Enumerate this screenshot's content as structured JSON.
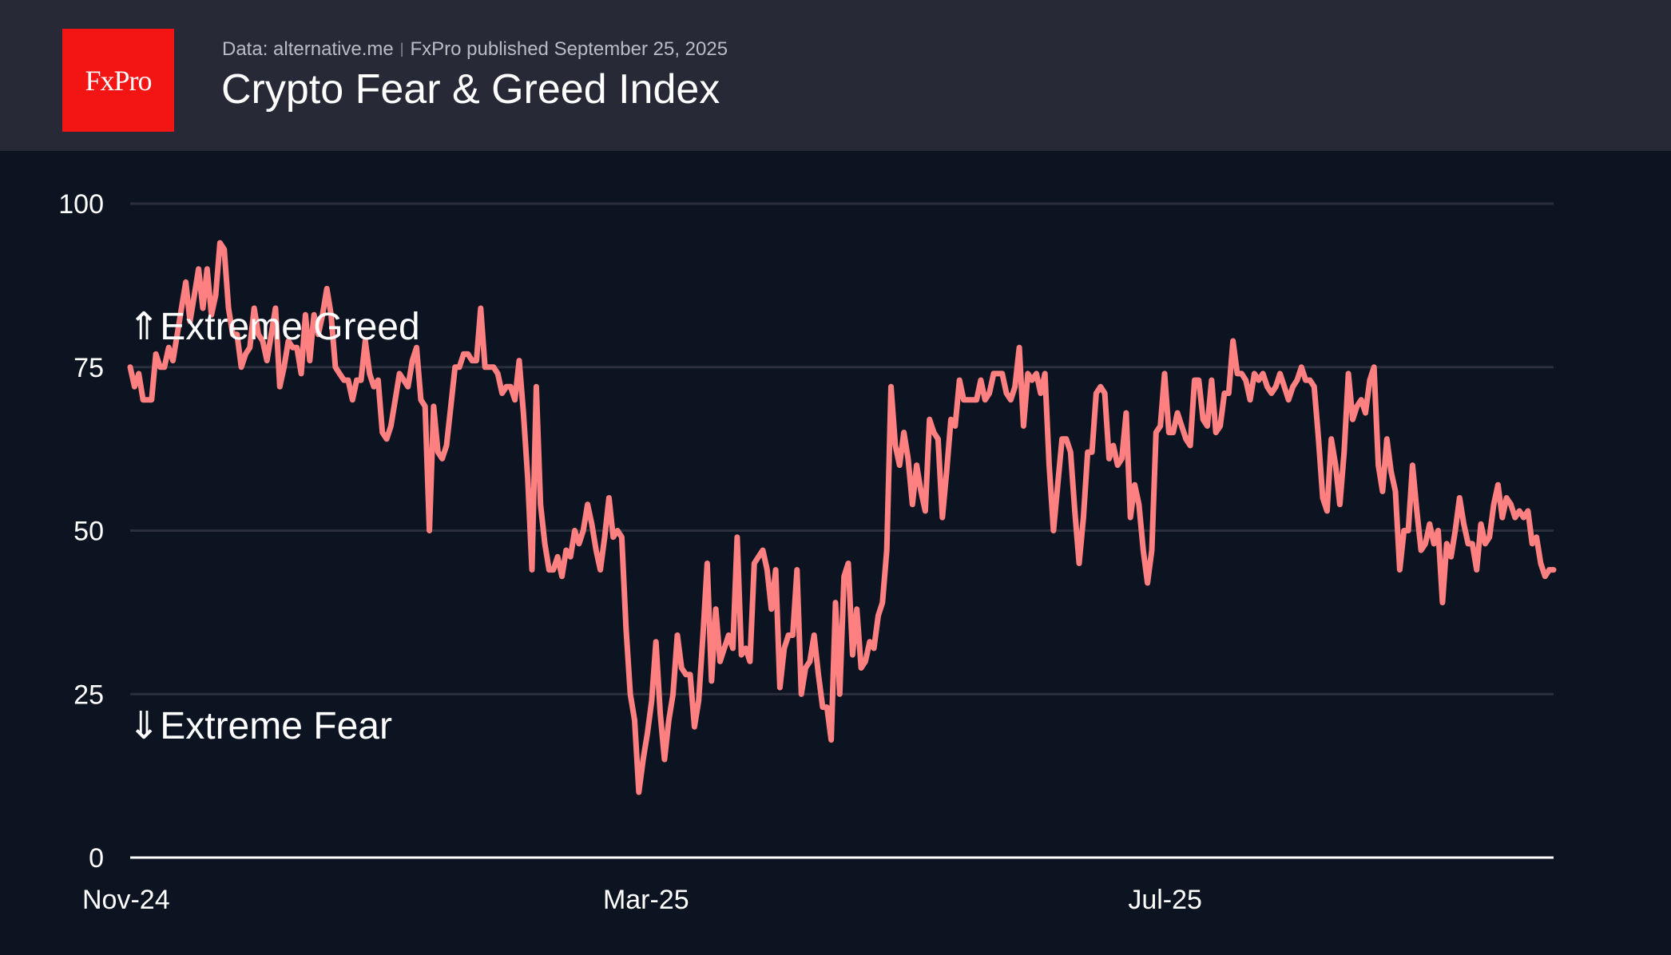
{
  "header": {
    "logo_text": "FxPro",
    "source": "Data: alternative.me",
    "separator": "|",
    "published": "FxPro published September 25, 2025",
    "title": "Crypto Fear & Greed Index"
  },
  "colors": {
    "header_bg": "#272a36",
    "chart_bg": "#0d1421",
    "logo_bg": "#f31414",
    "line": "#ff8080",
    "grid": "#2a2f3b",
    "axis": "#ffffff"
  },
  "chart_data": {
    "type": "line",
    "title": "Crypto Fear & Greed Index",
    "xlabel": "",
    "ylabel": "",
    "ylim": [
      0,
      100
    ],
    "yticks": [
      0,
      25,
      50,
      75,
      100
    ],
    "grid": true,
    "x_start": "2024-11-01",
    "x_end": "2025-09-25",
    "xticks": [
      {
        "label": "Nov-24",
        "day": 0
      },
      {
        "label": "Mar-25",
        "day": 120
      },
      {
        "label": "Jul-25",
        "day": 241
      }
    ],
    "annotations": [
      {
        "text": "⇑Extreme Greed",
        "value": 80
      },
      {
        "text": "⇓Extreme Fear",
        "value": 20
      }
    ],
    "series": [
      {
        "name": "Fear & Greed Index",
        "values": [
          75,
          72,
          74,
          70,
          70,
          70,
          77,
          75,
          75,
          78,
          76,
          80,
          84,
          88,
          82,
          86,
          90,
          84,
          90,
          83,
          86,
          94,
          93,
          84,
          80,
          80,
          75,
          77,
          78,
          84,
          80,
          79,
          76,
          80,
          84,
          72,
          75,
          79,
          78,
          78,
          74,
          83,
          76,
          83,
          80,
          83,
          87,
          83,
          75,
          74,
          73,
          73,
          70,
          73,
          73,
          79,
          74,
          72,
          73,
          65,
          64,
          66,
          70,
          74,
          73,
          72,
          76,
          78,
          70,
          69,
          50,
          69,
          62,
          61,
          63,
          69,
          75,
          75,
          77,
          77,
          76,
          76,
          84,
          75,
          75,
          75,
          74,
          71,
          72,
          72,
          70,
          76,
          68,
          58,
          44,
          72,
          54,
          48,
          44,
          44,
          46,
          43,
          47,
          46,
          50,
          48,
          50,
          54,
          51,
          47,
          44,
          49,
          55,
          49,
          50,
          49,
          35,
          25,
          21,
          10,
          15,
          19,
          24,
          33,
          22,
          15,
          21,
          25,
          34,
          29,
          28,
          28,
          20,
          24,
          34,
          45,
          27,
          38,
          30,
          32,
          34,
          32,
          49,
          31,
          32,
          30,
          45,
          46,
          47,
          44,
          38,
          44,
          26,
          32,
          34,
          34,
          44,
          25,
          29,
          30,
          34,
          28,
          23,
          23,
          18,
          39,
          25,
          43,
          45,
          31,
          38,
          29,
          30,
          33,
          32,
          37,
          39,
          47,
          72,
          63,
          60,
          65,
          61,
          54,
          60,
          56,
          53,
          67,
          65,
          64,
          52,
          59,
          67,
          66,
          73,
          70,
          70,
          70,
          70,
          73,
          70,
          71,
          74,
          74,
          74,
          71,
          70,
          72,
          78,
          66,
          74,
          73,
          74,
          71,
          74,
          60,
          50,
          57,
          64,
          64,
          62,
          53,
          45,
          52,
          62,
          62,
          71,
          72,
          71,
          61,
          63,
          60,
          61,
          68,
          52,
          57,
          54,
          47,
          42,
          47,
          65,
          66,
          74,
          65,
          65,
          68,
          66,
          64,
          63,
          73,
          73,
          67,
          66,
          73,
          65,
          66,
          71,
          71,
          79,
          74,
          74,
          73,
          70,
          74,
          73,
          74,
          72,
          71,
          72,
          74,
          72,
          70,
          72,
          73,
          75,
          73,
          73,
          72,
          64,
          55,
          53,
          64,
          60,
          54,
          62,
          74,
          67,
          69,
          70,
          68,
          73,
          75,
          60,
          56,
          64,
          59,
          56,
          44,
          50,
          50,
          60,
          53,
          47,
          48,
          51,
          48,
          50,
          39,
          48,
          46,
          50,
          55,
          51,
          48,
          48,
          44,
          51,
          48,
          49,
          54,
          57,
          52,
          55,
          54,
          52,
          53,
          52,
          53,
          48,
          49,
          45,
          43,
          44,
          44
        ]
      }
    ]
  }
}
